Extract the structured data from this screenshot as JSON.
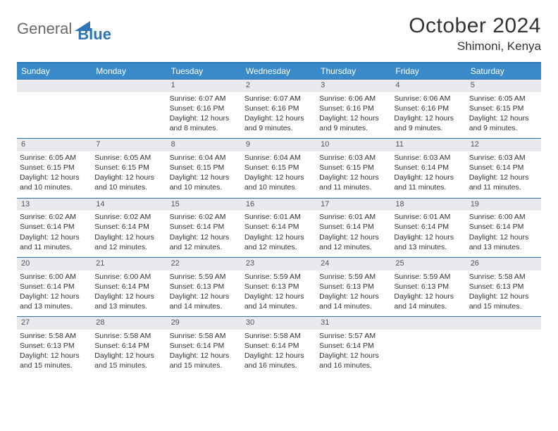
{
  "logo": {
    "general": "General",
    "blue": "Blue"
  },
  "header": {
    "title": "October 2024",
    "location": "Shimoni, Kenya"
  },
  "colors": {
    "header_bg": "#3a8ac9",
    "border": "#2e75b6",
    "daynum_bg": "#e8eaed",
    "text": "#333333"
  },
  "day_names": [
    "Sunday",
    "Monday",
    "Tuesday",
    "Wednesday",
    "Thursday",
    "Friday",
    "Saturday"
  ],
  "weeks": [
    [
      null,
      null,
      {
        "n": "1",
        "sr": "Sunrise: 6:07 AM",
        "ss": "Sunset: 6:16 PM",
        "d1": "Daylight: 12 hours",
        "d2": "and 8 minutes."
      },
      {
        "n": "2",
        "sr": "Sunrise: 6:07 AM",
        "ss": "Sunset: 6:16 PM",
        "d1": "Daylight: 12 hours",
        "d2": "and 9 minutes."
      },
      {
        "n": "3",
        "sr": "Sunrise: 6:06 AM",
        "ss": "Sunset: 6:16 PM",
        "d1": "Daylight: 12 hours",
        "d2": "and 9 minutes."
      },
      {
        "n": "4",
        "sr": "Sunrise: 6:06 AM",
        "ss": "Sunset: 6:16 PM",
        "d1": "Daylight: 12 hours",
        "d2": "and 9 minutes."
      },
      {
        "n": "5",
        "sr": "Sunrise: 6:05 AM",
        "ss": "Sunset: 6:15 PM",
        "d1": "Daylight: 12 hours",
        "d2": "and 9 minutes."
      }
    ],
    [
      {
        "n": "6",
        "sr": "Sunrise: 6:05 AM",
        "ss": "Sunset: 6:15 PM",
        "d1": "Daylight: 12 hours",
        "d2": "and 10 minutes."
      },
      {
        "n": "7",
        "sr": "Sunrise: 6:05 AM",
        "ss": "Sunset: 6:15 PM",
        "d1": "Daylight: 12 hours",
        "d2": "and 10 minutes."
      },
      {
        "n": "8",
        "sr": "Sunrise: 6:04 AM",
        "ss": "Sunset: 6:15 PM",
        "d1": "Daylight: 12 hours",
        "d2": "and 10 minutes."
      },
      {
        "n": "9",
        "sr": "Sunrise: 6:04 AM",
        "ss": "Sunset: 6:15 PM",
        "d1": "Daylight: 12 hours",
        "d2": "and 10 minutes."
      },
      {
        "n": "10",
        "sr": "Sunrise: 6:03 AM",
        "ss": "Sunset: 6:15 PM",
        "d1": "Daylight: 12 hours",
        "d2": "and 11 minutes."
      },
      {
        "n": "11",
        "sr": "Sunrise: 6:03 AM",
        "ss": "Sunset: 6:14 PM",
        "d1": "Daylight: 12 hours",
        "d2": "and 11 minutes."
      },
      {
        "n": "12",
        "sr": "Sunrise: 6:03 AM",
        "ss": "Sunset: 6:14 PM",
        "d1": "Daylight: 12 hours",
        "d2": "and 11 minutes."
      }
    ],
    [
      {
        "n": "13",
        "sr": "Sunrise: 6:02 AM",
        "ss": "Sunset: 6:14 PM",
        "d1": "Daylight: 12 hours",
        "d2": "and 11 minutes."
      },
      {
        "n": "14",
        "sr": "Sunrise: 6:02 AM",
        "ss": "Sunset: 6:14 PM",
        "d1": "Daylight: 12 hours",
        "d2": "and 12 minutes."
      },
      {
        "n": "15",
        "sr": "Sunrise: 6:02 AM",
        "ss": "Sunset: 6:14 PM",
        "d1": "Daylight: 12 hours",
        "d2": "and 12 minutes."
      },
      {
        "n": "16",
        "sr": "Sunrise: 6:01 AM",
        "ss": "Sunset: 6:14 PM",
        "d1": "Daylight: 12 hours",
        "d2": "and 12 minutes."
      },
      {
        "n": "17",
        "sr": "Sunrise: 6:01 AM",
        "ss": "Sunset: 6:14 PM",
        "d1": "Daylight: 12 hours",
        "d2": "and 12 minutes."
      },
      {
        "n": "18",
        "sr": "Sunrise: 6:01 AM",
        "ss": "Sunset: 6:14 PM",
        "d1": "Daylight: 12 hours",
        "d2": "and 13 minutes."
      },
      {
        "n": "19",
        "sr": "Sunrise: 6:00 AM",
        "ss": "Sunset: 6:14 PM",
        "d1": "Daylight: 12 hours",
        "d2": "and 13 minutes."
      }
    ],
    [
      {
        "n": "20",
        "sr": "Sunrise: 6:00 AM",
        "ss": "Sunset: 6:14 PM",
        "d1": "Daylight: 12 hours",
        "d2": "and 13 minutes."
      },
      {
        "n": "21",
        "sr": "Sunrise: 6:00 AM",
        "ss": "Sunset: 6:14 PM",
        "d1": "Daylight: 12 hours",
        "d2": "and 13 minutes."
      },
      {
        "n": "22",
        "sr": "Sunrise: 5:59 AM",
        "ss": "Sunset: 6:13 PM",
        "d1": "Daylight: 12 hours",
        "d2": "and 14 minutes."
      },
      {
        "n": "23",
        "sr": "Sunrise: 5:59 AM",
        "ss": "Sunset: 6:13 PM",
        "d1": "Daylight: 12 hours",
        "d2": "and 14 minutes."
      },
      {
        "n": "24",
        "sr": "Sunrise: 5:59 AM",
        "ss": "Sunset: 6:13 PM",
        "d1": "Daylight: 12 hours",
        "d2": "and 14 minutes."
      },
      {
        "n": "25",
        "sr": "Sunrise: 5:59 AM",
        "ss": "Sunset: 6:13 PM",
        "d1": "Daylight: 12 hours",
        "d2": "and 14 minutes."
      },
      {
        "n": "26",
        "sr": "Sunrise: 5:58 AM",
        "ss": "Sunset: 6:13 PM",
        "d1": "Daylight: 12 hours",
        "d2": "and 15 minutes."
      }
    ],
    [
      {
        "n": "27",
        "sr": "Sunrise: 5:58 AM",
        "ss": "Sunset: 6:13 PM",
        "d1": "Daylight: 12 hours",
        "d2": "and 15 minutes."
      },
      {
        "n": "28",
        "sr": "Sunrise: 5:58 AM",
        "ss": "Sunset: 6:14 PM",
        "d1": "Daylight: 12 hours",
        "d2": "and 15 minutes."
      },
      {
        "n": "29",
        "sr": "Sunrise: 5:58 AM",
        "ss": "Sunset: 6:14 PM",
        "d1": "Daylight: 12 hours",
        "d2": "and 15 minutes."
      },
      {
        "n": "30",
        "sr": "Sunrise: 5:58 AM",
        "ss": "Sunset: 6:14 PM",
        "d1": "Daylight: 12 hours",
        "d2": "and 16 minutes."
      },
      {
        "n": "31",
        "sr": "Sunrise: 5:57 AM",
        "ss": "Sunset: 6:14 PM",
        "d1": "Daylight: 12 hours",
        "d2": "and 16 minutes."
      },
      null,
      null
    ]
  ]
}
